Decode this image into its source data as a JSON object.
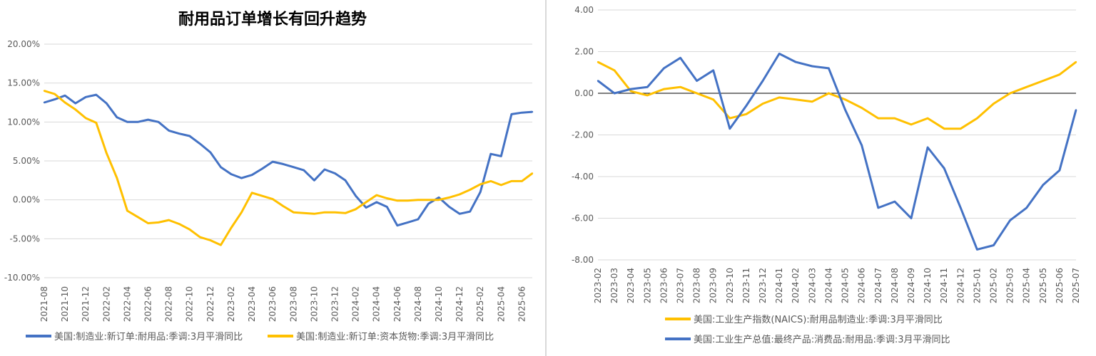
{
  "colors": {
    "blue": "#4472C4",
    "gold": "#FFC000",
    "grid": "#d9d9d9",
    "zero": "#000000"
  },
  "chart_data": [
    {
      "type": "line",
      "title": "耐用品订单增长有回升趋势",
      "y_tick_labels": [
        "20.00%",
        "15.00%",
        "10.00%",
        "5.00%",
        "0.00%",
        "-5.00%",
        "-10.00%"
      ],
      "ylim": [
        -10,
        20
      ],
      "y_unit": "%",
      "grid": true,
      "legend_position": "bottom",
      "x_tick_labels": [
        "2021-08",
        "2021-10",
        "2021-12",
        "2022-02",
        "2022-04",
        "2022-06",
        "2022-08",
        "2022-10",
        "2022-12",
        "2023-02",
        "2023-04",
        "2023-06",
        "2023-08",
        "2023-10",
        "2023-12",
        "2024-02",
        "2024-04",
        "2024-06",
        "2024-08",
        "2024-10",
        "2024-12",
        "2025-02",
        "2025-04",
        "2025-06"
      ],
      "x_start": "2021-08",
      "x_end": "2025-07",
      "series": [
        {
          "name": "美国:制造业:新订单:耐用品:季调:3月平滑同比",
          "color": "#4472C4",
          "values": [
            12.5,
            12.9,
            13.4,
            12.4,
            13.2,
            13.5,
            12.4,
            10.6,
            10.0,
            10.0,
            10.3,
            10.0,
            8.9,
            8.5,
            8.2,
            7.2,
            6.1,
            4.2,
            3.3,
            2.8,
            3.2,
            4.0,
            4.9,
            4.6,
            4.2,
            3.8,
            2.5,
            3.9,
            3.4,
            2.5,
            0.5,
            -1.0,
            -0.3,
            -0.9,
            -3.3,
            -2.9,
            -2.5,
            -0.5,
            0.3,
            -0.9,
            -1.8,
            -1.5,
            1.0,
            5.9,
            5.6,
            11.0,
            11.2,
            11.3
          ]
        },
        {
          "name": "美国:制造业:新订单:资本货物:季调:3月平滑同比",
          "color": "#FFC000",
          "values": [
            14.0,
            13.6,
            12.5,
            11.6,
            10.5,
            9.9,
            6.0,
            2.8,
            -1.4,
            -2.2,
            -3.0,
            -2.9,
            -2.6,
            -3.1,
            -3.8,
            -4.8,
            -5.2,
            -5.8,
            -3.6,
            -1.6,
            0.9,
            0.5,
            0.1,
            -0.8,
            -1.6,
            -1.7,
            -1.8,
            -1.6,
            -1.6,
            -1.7,
            -1.2,
            -0.3,
            0.6,
            0.2,
            -0.1,
            -0.1,
            0.0,
            0.0,
            0.0,
            0.3,
            0.7,
            1.3,
            2.0,
            2.4,
            1.9,
            2.4,
            2.4,
            3.4
          ]
        }
      ]
    },
    {
      "type": "line",
      "title": "",
      "y_tick_labels": [
        "4.00",
        "2.00",
        "0.00",
        "-2.00",
        "-4.00",
        "-6.00",
        "-8.00"
      ],
      "ylim": [
        -8,
        4
      ],
      "grid": true,
      "legend_position": "bottom",
      "x_tick_labels": [
        "2023-02",
        "2023-03",
        "2023-04",
        "2023-05",
        "2023-06",
        "2023-07",
        "2023-08",
        "2023-09",
        "2023-10",
        "2023-11",
        "2023-12",
        "2024-01",
        "2024-02",
        "2024-03",
        "2024-04",
        "2024-05",
        "2024-06",
        "2024-07",
        "2024-08",
        "2024-09",
        "2024-10",
        "2024-11",
        "2024-12",
        "2025-01",
        "2025-02",
        "2025-03",
        "2025-04",
        "2025-05",
        "2025-06",
        "2025-07"
      ],
      "series": [
        {
          "name": "美国:工业生产指数(NAICS):耐用品制造业:季调:3月平滑同比",
          "color": "#FFC000",
          "values": [
            1.5,
            1.1,
            0.1,
            -0.1,
            0.2,
            0.3,
            0.0,
            -0.3,
            -1.2,
            -1.0,
            -0.5,
            -0.2,
            -0.3,
            -0.4,
            0.0,
            -0.3,
            -0.7,
            -1.2,
            -1.2,
            -1.5,
            -1.2,
            -1.7,
            -1.7,
            -1.2,
            -0.5,
            0.0,
            0.3,
            0.6,
            0.9,
            1.5
          ]
        },
        {
          "name": "美国:工业生产总值:最终产品:消费品:耐用品:季调:3月平滑同比",
          "color": "#4472C4",
          "values": [
            0.6,
            0.0,
            0.2,
            0.3,
            1.2,
            1.7,
            0.6,
            1.1,
            -1.7,
            -0.6,
            0.6,
            1.9,
            1.5,
            1.3,
            1.2,
            -0.8,
            -2.5,
            -5.5,
            -5.2,
            -6.0,
            -2.6,
            -3.6,
            -5.5,
            -7.5,
            -7.3,
            -6.1,
            -5.5,
            -4.4,
            -3.7,
            -0.8
          ]
        }
      ]
    }
  ]
}
